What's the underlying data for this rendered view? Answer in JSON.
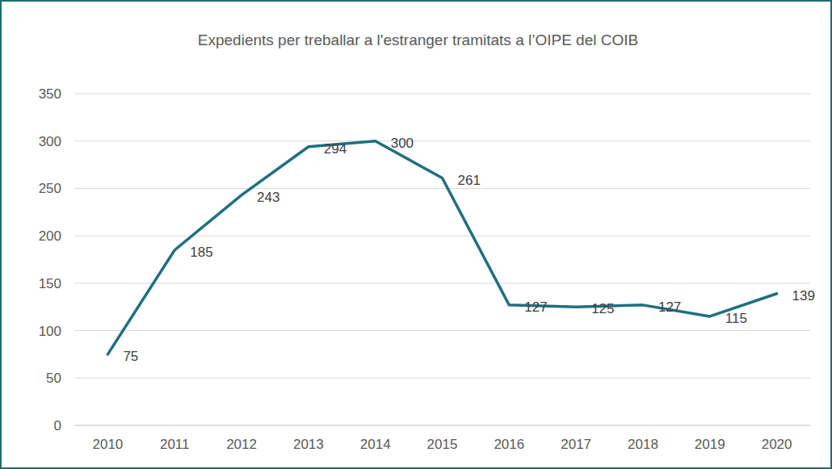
{
  "chart_data": {
    "type": "line",
    "title": "Expedients per treballar a l'estranger tramitats a l’OIPE del COIB",
    "categories": [
      "2010",
      "2011",
      "2012",
      "2013",
      "2014",
      "2015",
      "2016",
      "2017",
      "2018",
      "2019",
      "2020"
    ],
    "values": [
      75,
      185,
      243,
      294,
      300,
      261,
      127,
      125,
      127,
      115,
      139
    ],
    "color": "#1f6f80",
    "ylim": [
      0,
      350
    ],
    "yticks": [
      0,
      50,
      100,
      150,
      200,
      250,
      300,
      350
    ],
    "grid": true,
    "data_labels": true
  }
}
